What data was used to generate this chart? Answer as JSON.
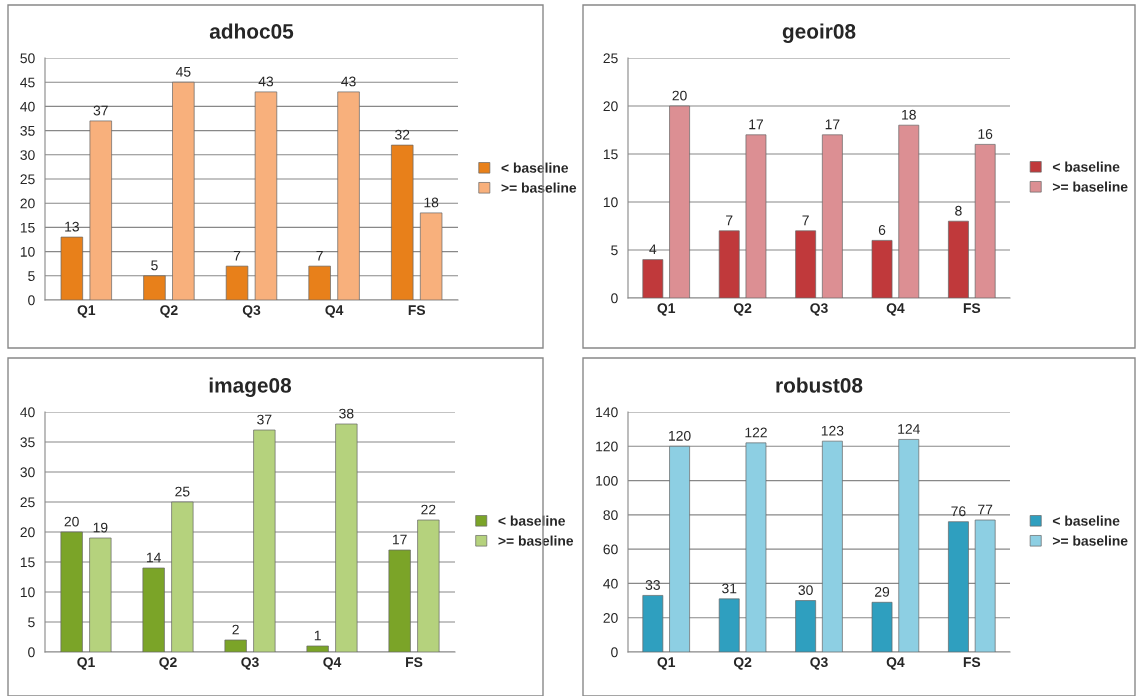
{
  "chart_data": [
    {
      "type": "bar",
      "title": "adhoc05",
      "categories": [
        "Q1",
        "Q2",
        "Q3",
        "Q4",
        "FS"
      ],
      "ylim": [
        0,
        50
      ],
      "yticks": [
        0,
        5,
        10,
        15,
        20,
        25,
        30,
        35,
        40,
        45,
        50
      ],
      "grid": "y",
      "legend": "right",
      "data_labels": true,
      "series": [
        {
          "name": "< baseline",
          "color": "#e8801a",
          "values": [
            13,
            5,
            7,
            7,
            32
          ]
        },
        {
          "name": ">= baseline",
          "color": "#f8b07c",
          "values": [
            37,
            45,
            43,
            43,
            18
          ]
        }
      ]
    },
    {
      "type": "bar",
      "title": "geoir08",
      "categories": [
        "Q1",
        "Q2",
        "Q3",
        "Q4",
        "FS"
      ],
      "ylim": [
        0,
        25
      ],
      "yticks": [
        0,
        5,
        10,
        15,
        20,
        25
      ],
      "grid": "y",
      "legend": "right",
      "data_labels": true,
      "series": [
        {
          "name": "< baseline",
          "color": "#c0393b",
          "values": [
            4,
            7,
            7,
            6,
            8
          ]
        },
        {
          "name": ">= baseline",
          "color": "#dc8f93",
          "values": [
            20,
            17,
            17,
            18,
            16
          ]
        }
      ]
    },
    {
      "type": "bar",
      "title": "image08",
      "categories": [
        "Q1",
        "Q2",
        "Q3",
        "Q4",
        "FS"
      ],
      "ylim": [
        0,
        40
      ],
      "yticks": [
        0,
        5,
        10,
        15,
        20,
        25,
        30,
        35,
        40
      ],
      "grid": "y",
      "legend": "right",
      "data_labels": true,
      "series": [
        {
          "name": "< baseline",
          "color": "#7ba428",
          "values": [
            20,
            14,
            2,
            1,
            17
          ]
        },
        {
          "name": ">= baseline",
          "color": "#b5d27d",
          "values": [
            19,
            25,
            37,
            38,
            22
          ]
        }
      ]
    },
    {
      "type": "bar",
      "title": "robust08",
      "categories": [
        "Q1",
        "Q2",
        "Q3",
        "Q4",
        "FS"
      ],
      "ylim": [
        0,
        140
      ],
      "yticks": [
        0,
        20,
        40,
        60,
        80,
        100,
        120,
        140
      ],
      "grid": "y",
      "legend": "right",
      "data_labels": true,
      "series": [
        {
          "name": "< baseline",
          "color": "#2f9fbf",
          "values": [
            33,
            31,
            30,
            29,
            76
          ]
        },
        {
          "name": ">= baseline",
          "color": "#8dcfe3",
          "values": [
            120,
            122,
            123,
            124,
            77
          ]
        }
      ]
    }
  ]
}
